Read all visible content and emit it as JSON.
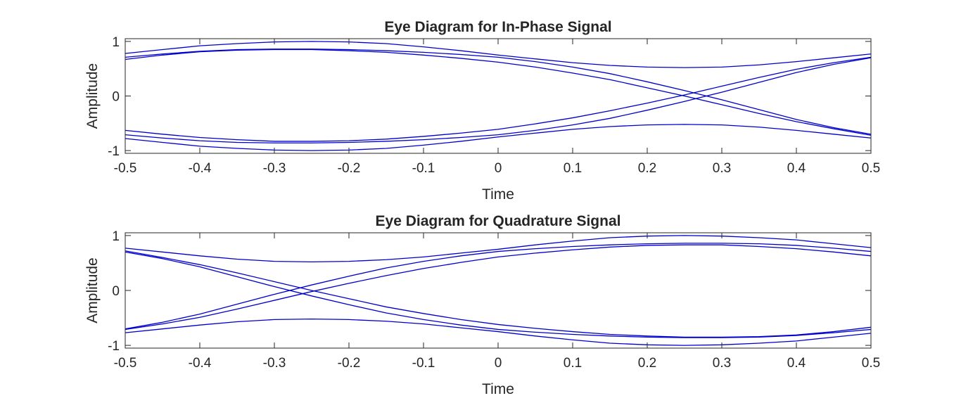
{
  "chart_data": [
    {
      "type": "line",
      "title": "Eye Diagram for In-Phase Signal",
      "xlabel": "Time",
      "ylabel": "Amplitude",
      "xlim": [
        -0.5,
        0.5
      ],
      "ylim": [
        -1.05,
        1.05
      ],
      "xticks": [
        "-0.5",
        "-0.4",
        "-0.3",
        "-0.2",
        "-0.1",
        "0",
        "0.1",
        "0.2",
        "0.3",
        "0.4",
        "0.5"
      ],
      "yticks": [
        "-1",
        "0",
        "1"
      ],
      "line_color": "#0000cc",
      "grid": false,
      "legend": "none",
      "series": [
        {
          "x": [
            -0.5,
            -0.45,
            -0.4,
            -0.35,
            -0.3,
            -0.25,
            -0.2,
            -0.15,
            -0.1,
            -0.05,
            0,
            0.05,
            0.1,
            0.15,
            0.2,
            0.25,
            0.3,
            0.35,
            0.4,
            0.45,
            0.5
          ],
          "y": [
            0.78,
            0.85,
            0.92,
            0.96,
            0.99,
            1.0,
            0.99,
            0.96,
            0.9,
            0.83,
            0.75,
            0.68,
            0.61,
            0.56,
            0.53,
            0.52,
            0.53,
            0.57,
            0.63,
            0.7,
            0.77
          ]
        },
        {
          "x": [
            -0.5,
            -0.45,
            -0.4,
            -0.35,
            -0.3,
            -0.25,
            -0.2,
            -0.15,
            -0.1,
            -0.05,
            0,
            0.05,
            0.1,
            0.15,
            0.2,
            0.25,
            0.3,
            0.35,
            0.4,
            0.45,
            0.5
          ],
          "y": [
            0.71,
            0.77,
            0.82,
            0.85,
            0.86,
            0.86,
            0.85,
            0.83,
            0.8,
            0.76,
            0.71,
            0.63,
            0.53,
            0.41,
            0.26,
            0.1,
            -0.07,
            -0.25,
            -0.43,
            -0.58,
            -0.7
          ]
        },
        {
          "x": [
            -0.5,
            -0.45,
            -0.4,
            -0.35,
            -0.3,
            -0.25,
            -0.2,
            -0.15,
            -0.1,
            -0.05,
            0,
            0.05,
            0.1,
            0.15,
            0.2,
            0.25,
            0.3,
            0.35,
            0.4,
            0.45,
            0.5
          ],
          "y": [
            0.67,
            0.75,
            0.81,
            0.84,
            0.85,
            0.85,
            0.83,
            0.8,
            0.75,
            0.69,
            0.62,
            0.53,
            0.42,
            0.3,
            0.15,
            0.0,
            -0.16,
            -0.32,
            -0.47,
            -0.6,
            -0.72
          ]
        },
        {
          "x": [
            -0.5,
            -0.45,
            -0.4,
            -0.35,
            -0.3,
            -0.25,
            -0.2,
            -0.15,
            -0.1,
            -0.05,
            0,
            0.05,
            0.1,
            0.15,
            0.2,
            0.25,
            0.3,
            0.35,
            0.4,
            0.45,
            0.5
          ],
          "y": [
            -0.63,
            -0.7,
            -0.76,
            -0.8,
            -0.83,
            -0.83,
            -0.82,
            -0.79,
            -0.74,
            -0.68,
            -0.61,
            -0.51,
            -0.4,
            -0.27,
            -0.13,
            0.02,
            0.18,
            0.34,
            0.49,
            0.61,
            0.71
          ]
        },
        {
          "x": [
            -0.5,
            -0.45,
            -0.4,
            -0.35,
            -0.3,
            -0.25,
            -0.2,
            -0.15,
            -0.1,
            -0.05,
            0,
            0.05,
            0.1,
            0.15,
            0.2,
            0.25,
            0.3,
            0.35,
            0.4,
            0.45,
            0.5
          ],
          "y": [
            -0.71,
            -0.77,
            -0.82,
            -0.85,
            -0.86,
            -0.86,
            -0.85,
            -0.83,
            -0.8,
            -0.76,
            -0.71,
            -0.63,
            -0.53,
            -0.41,
            -0.26,
            -0.1,
            0.07,
            0.25,
            0.43,
            0.58,
            0.7
          ]
        },
        {
          "x": [
            -0.5,
            -0.45,
            -0.4,
            -0.35,
            -0.3,
            -0.25,
            -0.2,
            -0.15,
            -0.1,
            -0.05,
            0,
            0.05,
            0.1,
            0.15,
            0.2,
            0.25,
            0.3,
            0.35,
            0.4,
            0.45,
            0.5
          ],
          "y": [
            -0.78,
            -0.85,
            -0.92,
            -0.96,
            -0.99,
            -1.0,
            -0.99,
            -0.96,
            -0.9,
            -0.83,
            -0.75,
            -0.68,
            -0.61,
            -0.56,
            -0.53,
            -0.52,
            -0.53,
            -0.57,
            -0.63,
            -0.7,
            -0.77
          ]
        }
      ]
    },
    {
      "type": "line",
      "title": "Eye Diagram for Quadrature Signal",
      "xlabel": "Time",
      "ylabel": "Amplitude",
      "xlim": [
        -0.5,
        0.5
      ],
      "ylim": [
        -1.05,
        1.05
      ],
      "xticks": [
        "-0.5",
        "-0.4",
        "-0.3",
        "-0.2",
        "-0.1",
        "0",
        "0.1",
        "0.2",
        "0.3",
        "0.4",
        "0.5"
      ],
      "yticks": [
        "-1",
        "0",
        "1"
      ],
      "line_color": "#0000cc",
      "grid": false,
      "legend": "none",
      "series": [
        {
          "x": [
            -0.5,
            -0.45,
            -0.4,
            -0.35,
            -0.3,
            -0.25,
            -0.2,
            -0.15,
            -0.1,
            -0.05,
            0,
            0.05,
            0.1,
            0.15,
            0.2,
            0.25,
            0.3,
            0.35,
            0.4,
            0.45,
            0.5
          ],
          "y": [
            0.77,
            0.7,
            0.63,
            0.57,
            0.53,
            0.52,
            0.53,
            0.56,
            0.61,
            0.68,
            0.75,
            0.83,
            0.9,
            0.96,
            0.99,
            1.0,
            0.99,
            0.96,
            0.92,
            0.85,
            0.78
          ]
        },
        {
          "x": [
            -0.5,
            -0.45,
            -0.4,
            -0.35,
            -0.3,
            -0.25,
            -0.2,
            -0.15,
            -0.1,
            -0.05,
            0,
            0.05,
            0.1,
            0.15,
            0.2,
            0.25,
            0.3,
            0.35,
            0.4,
            0.45,
            0.5
          ],
          "y": [
            0.72,
            0.6,
            0.47,
            0.32,
            0.16,
            0.0,
            -0.15,
            -0.3,
            -0.42,
            -0.53,
            -0.62,
            -0.69,
            -0.75,
            -0.8,
            -0.83,
            -0.85,
            -0.85,
            -0.84,
            -0.81,
            -0.75,
            -0.67
          ]
        },
        {
          "x": [
            -0.5,
            -0.45,
            -0.4,
            -0.35,
            -0.3,
            -0.25,
            -0.2,
            -0.15,
            -0.1,
            -0.05,
            0,
            0.05,
            0.1,
            0.15,
            0.2,
            0.25,
            0.3,
            0.35,
            0.4,
            0.45,
            0.5
          ],
          "y": [
            0.7,
            0.58,
            0.43,
            0.25,
            0.07,
            -0.1,
            -0.26,
            -0.41,
            -0.53,
            -0.63,
            -0.71,
            -0.76,
            -0.8,
            -0.83,
            -0.85,
            -0.86,
            -0.86,
            -0.85,
            -0.82,
            -0.77,
            -0.71
          ]
        },
        {
          "x": [
            -0.5,
            -0.45,
            -0.4,
            -0.35,
            -0.3,
            -0.25,
            -0.2,
            -0.15,
            -0.1,
            -0.05,
            0,
            0.05,
            0.1,
            0.15,
            0.2,
            0.25,
            0.3,
            0.35,
            0.4,
            0.45,
            0.5
          ],
          "y": [
            -0.7,
            -0.58,
            -0.43,
            -0.25,
            -0.07,
            0.1,
            0.26,
            0.41,
            0.53,
            0.63,
            0.71,
            0.76,
            0.8,
            0.83,
            0.85,
            0.86,
            0.86,
            0.85,
            0.82,
            0.77,
            0.71
          ]
        },
        {
          "x": [
            -0.5,
            -0.45,
            -0.4,
            -0.35,
            -0.3,
            -0.25,
            -0.2,
            -0.15,
            -0.1,
            -0.05,
            0,
            0.05,
            0.1,
            0.15,
            0.2,
            0.25,
            0.3,
            0.35,
            0.4,
            0.45,
            0.5
          ],
          "y": [
            -0.71,
            -0.61,
            -0.49,
            -0.34,
            -0.18,
            -0.02,
            0.13,
            0.27,
            0.4,
            0.51,
            0.61,
            0.68,
            0.74,
            0.79,
            0.82,
            0.83,
            0.83,
            0.8,
            0.76,
            0.7,
            0.63
          ]
        },
        {
          "x": [
            -0.5,
            -0.45,
            -0.4,
            -0.35,
            -0.3,
            -0.25,
            -0.2,
            -0.15,
            -0.1,
            -0.05,
            0,
            0.05,
            0.1,
            0.15,
            0.2,
            0.25,
            0.3,
            0.35,
            0.4,
            0.45,
            0.5
          ],
          "y": [
            -0.77,
            -0.7,
            -0.63,
            -0.57,
            -0.53,
            -0.52,
            -0.53,
            -0.56,
            -0.61,
            -0.68,
            -0.75,
            -0.83,
            -0.9,
            -0.96,
            -0.99,
            -1.0,
            -0.99,
            -0.96,
            -0.92,
            -0.85,
            -0.78
          ]
        }
      ]
    }
  ]
}
